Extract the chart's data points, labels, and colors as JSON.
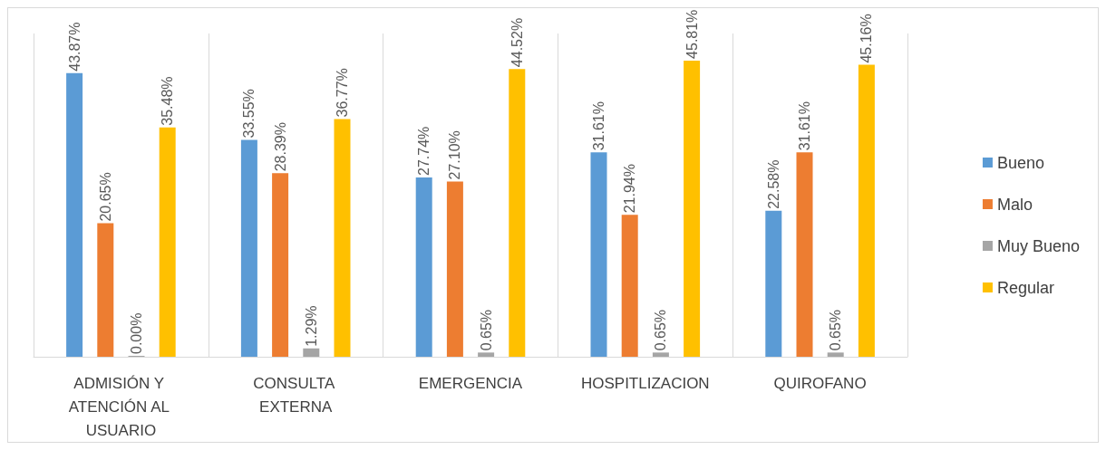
{
  "chart_data": {
    "type": "bar",
    "categories": [
      "ADMISIÓN Y ATENCIÓN AL USUARIO",
      "CONSULTA EXTERNA",
      "EMERGENCIA",
      "HOSPITLIZACION",
      "QUIROFANO"
    ],
    "series": [
      {
        "name": "Bueno",
        "color": "#5b9bd5",
        "values": [
          43.87,
          33.55,
          27.74,
          31.61,
          22.58
        ],
        "value_labels": [
          "43.87%",
          "33.55%",
          "27.74%",
          "31.61%",
          "22.58%"
        ]
      },
      {
        "name": "Malo",
        "color": "#ed7d31",
        "values": [
          20.65,
          28.39,
          27.1,
          21.94,
          31.61
        ],
        "value_labels": [
          "20.65%",
          "28.39%",
          "27.10%",
          "21.94%",
          "31.61%"
        ]
      },
      {
        "name": "Muy Bueno",
        "color": "#a5a5a5",
        "values": [
          0,
          1.29,
          0.65,
          0.65,
          0.65
        ],
        "value_labels": [
          "0.00%",
          "1.29%",
          "0.65%",
          "0.65%",
          "0.65%"
        ]
      },
      {
        "name": "Regular",
        "color": "#ffc000",
        "values": [
          35.48,
          36.77,
          44.52,
          45.81,
          45.16
        ],
        "value_labels": [
          "35.48%",
          "36.77%",
          "44.52%",
          "45.81%",
          "45.16%"
        ]
      }
    ],
    "legend": "right",
    "grid": "x"
  }
}
